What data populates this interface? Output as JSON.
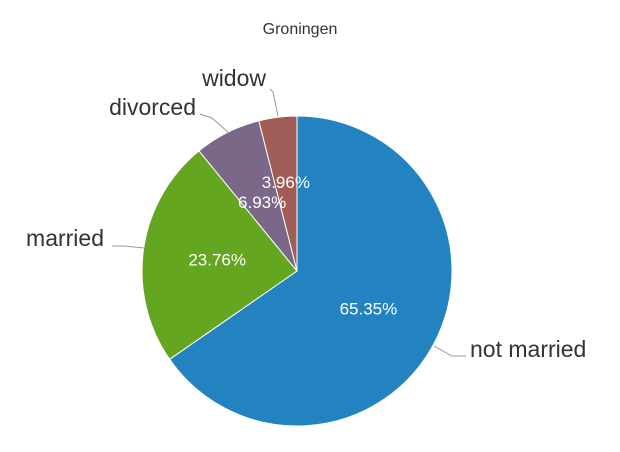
{
  "chart_data": {
    "type": "pie",
    "title": "Groningen",
    "slices": [
      {
        "label": "not married",
        "value": 65.35,
        "value_label": "65.35%",
        "color": "#2383c1"
      },
      {
        "label": "married",
        "value": 23.76,
        "value_label": "23.76%",
        "color": "#64a61f"
      },
      {
        "label": "divorced",
        "value": 6.93,
        "value_label": "6.93%",
        "color": "#7b6788"
      },
      {
        "label": "widow",
        "value": 3.96,
        "value_label": "3.96%",
        "color": "#a05c56"
      }
    ]
  }
}
